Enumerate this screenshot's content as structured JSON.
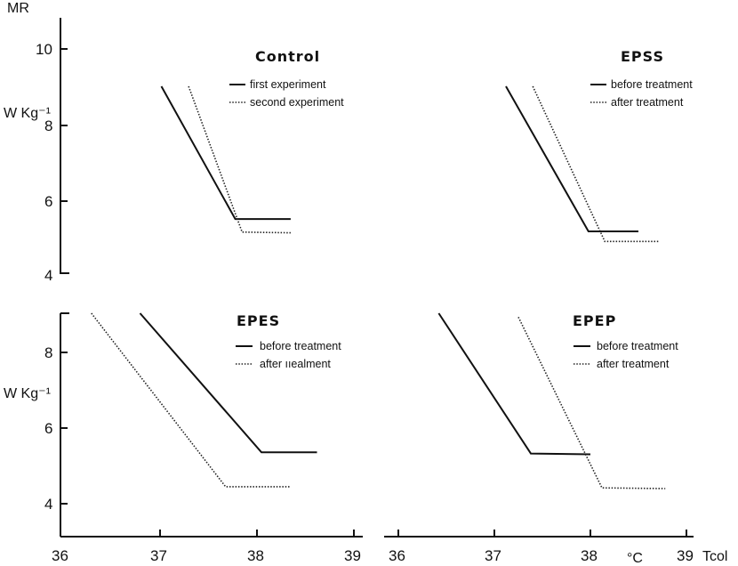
{
  "chart_data": [
    {
      "type": "line",
      "title": "Control",
      "ylabel_top": "MR",
      "ylabel": "W Kg⁻¹",
      "xlim": [
        36,
        39
      ],
      "ylim": [
        4,
        10
      ],
      "yticks": [
        4,
        6,
        8,
        10
      ],
      "series": [
        {
          "name": "first experiment",
          "style": "solid",
          "points": [
            [
              37.02,
              9.0
            ],
            [
              37.78,
              5.45
            ],
            [
              38.35,
              5.45
            ]
          ]
        },
        {
          "name": "second experiment",
          "style": "dotted",
          "points": [
            [
              37.3,
              9.0
            ],
            [
              37.85,
              5.1
            ],
            [
              38.35,
              5.08
            ]
          ]
        }
      ]
    },
    {
      "type": "line",
      "title": "EPSS",
      "xlim": [
        36,
        39
      ],
      "ylim": [
        4,
        10
      ],
      "series": [
        {
          "name": "before treatment",
          "style": "solid",
          "points": [
            [
              37.12,
              9.0
            ],
            [
              37.98,
              5.12
            ],
            [
              38.5,
              5.12
            ]
          ]
        },
        {
          "name": "after treatment",
          "style": "dotted",
          "points": [
            [
              37.4,
              9.0
            ],
            [
              38.15,
              4.85
            ],
            [
              38.72,
              4.85
            ]
          ]
        }
      ]
    },
    {
      "type": "line",
      "title": "EPES",
      "ylabel": "W Kg⁻¹",
      "xlim": [
        36,
        39
      ],
      "ylim": [
        3,
        9
      ],
      "xticks": [
        36,
        37,
        38,
        39
      ],
      "yticks": [
        4,
        6,
        8
      ],
      "series": [
        {
          "name": "before treatment",
          "style": "solid",
          "points": [
            [
              36.8,
              9.0
            ],
            [
              38.05,
              5.35
            ],
            [
              38.62,
              5.35
            ]
          ]
        },
        {
          "name": "after ııealment",
          "style": "dotted",
          "points": [
            [
              36.3,
              9.0
            ],
            [
              37.68,
              4.45
            ],
            [
              38.35,
              4.45
            ]
          ]
        }
      ]
    },
    {
      "type": "line",
      "title": "EPEP",
      "xlabel": "Tcol",
      "xunit": "°C",
      "xlim": [
        36,
        39
      ],
      "ylim": [
        3,
        9
      ],
      "xticks": [
        36,
        37,
        38,
        39
      ],
      "series": [
        {
          "name": "before treatment",
          "style": "solid",
          "points": [
            [
              36.42,
              9.0
            ],
            [
              37.38,
              5.32
            ],
            [
              38.0,
              5.3
            ]
          ]
        },
        {
          "name": "after treatment",
          "style": "dotted",
          "points": [
            [
              37.25,
              8.9
            ],
            [
              38.12,
              4.42
            ],
            [
              38.78,
              4.4
            ]
          ]
        }
      ]
    }
  ]
}
